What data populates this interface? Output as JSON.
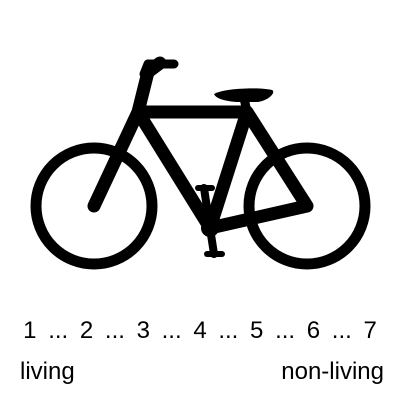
{
  "image": {
    "icon": "bicycle-icon",
    "color": "#000000",
    "background": "#ffffff"
  },
  "scale": {
    "points": [
      "1",
      "2",
      "3",
      "4",
      "5",
      "6",
      "7"
    ],
    "separator": "...",
    "left_label": "living",
    "right_label": "non-living"
  }
}
